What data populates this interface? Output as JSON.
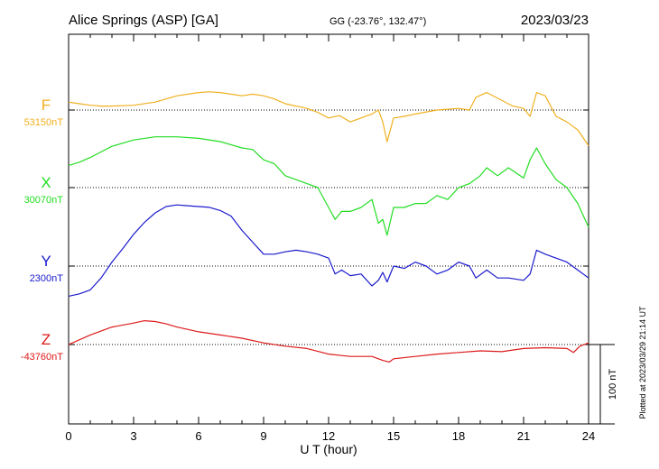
{
  "chart_data": {
    "type": "line",
    "title": "Alice Springs (ASP)  [GA]",
    "coords": "GG (-23.76°, 132.47°)",
    "date": "2023/03/23",
    "xlabel": "U T (hour)",
    "xlim": [
      0,
      24
    ],
    "xticks": [
      "0",
      "3",
      "6",
      "9",
      "12",
      "15",
      "18",
      "21",
      "24"
    ],
    "scale_bar": "100 nT",
    "plotted_note": "Plotted at 2023/03/29 21:14 UT",
    "series": [
      {
        "name": "F",
        "baseline": "53150nT",
        "color": "#f0b020",
        "x": [
          0,
          0.5,
          1,
          1.5,
          2,
          3,
          4,
          5,
          6,
          6.5,
          7,
          7.5,
          8,
          8.5,
          9,
          9.5,
          10,
          11,
          11.5,
          12,
          12.5,
          13,
          13.5,
          14,
          14.3,
          14.5,
          14.7,
          15,
          15.5,
          16,
          17,
          18,
          18.5,
          18.8,
          19.3,
          20,
          20.5,
          21,
          21.3,
          21.6,
          22,
          22.5,
          23,
          23.5,
          24
        ],
        "values": [
          10,
          8,
          6,
          5,
          5,
          6,
          10,
          18,
          22,
          23,
          22,
          20,
          18,
          20,
          18,
          14,
          8,
          2,
          -3,
          -10,
          -7,
          -15,
          -10,
          -5,
          0,
          -15,
          -40,
          -10,
          -8,
          -5,
          0,
          2,
          0,
          16,
          22,
          12,
          5,
          2,
          -8,
          22,
          18,
          -8,
          -15,
          -25,
          -45
        ]
      },
      {
        "name": "X",
        "baseline": "30070nT",
        "color": "#22dd22",
        "x": [
          0,
          0.5,
          1,
          1.5,
          2,
          3,
          4,
          5,
          6,
          7,
          8,
          8.5,
          9,
          9.5,
          10,
          10.5,
          11,
          11.5,
          12,
          12.3,
          12.6,
          13,
          13.5,
          14,
          14.3,
          14.5,
          14.7,
          15,
          15.5,
          16,
          16.5,
          17,
          17.5,
          18,
          18.5,
          19,
          19.3,
          19.8,
          20.3,
          21,
          21.3,
          21.6,
          22,
          22.5,
          23,
          23.5,
          24
        ],
        "values": [
          28,
          32,
          38,
          45,
          52,
          60,
          64,
          64,
          62,
          58,
          50,
          48,
          35,
          30,
          15,
          10,
          5,
          0,
          -25,
          -40,
          -30,
          -30,
          -25,
          -15,
          -45,
          -40,
          -60,
          -25,
          -25,
          -20,
          -20,
          -10,
          -15,
          0,
          5,
          15,
          25,
          15,
          25,
          12,
          35,
          50,
          30,
          10,
          0,
          -20,
          -50
        ]
      },
      {
        "name": "Y",
        "baseline": "2300nT",
        "color": "#1a1acc",
        "x": [
          0,
          0.5,
          1,
          1.5,
          2,
          2.5,
          3,
          3.5,
          4,
          4.5,
          5,
          5.5,
          6,
          6.5,
          7,
          7.5,
          8,
          8.5,
          9,
          9.5,
          10,
          10.5,
          11,
          11.5,
          12,
          12.3,
          12.6,
          13,
          13.5,
          14,
          14.3,
          14.5,
          14.7,
          15,
          15.5,
          16,
          16.5,
          17,
          17.5,
          18,
          18.5,
          18.8,
          19.3,
          19.8,
          20.3,
          21,
          21.3,
          21.6,
          22,
          22.5,
          23,
          23.5,
          24
        ],
        "values": [
          -38,
          -35,
          -30,
          -15,
          5,
          22,
          40,
          55,
          67,
          75,
          77,
          76,
          75,
          74,
          70,
          63,
          45,
          30,
          15,
          15,
          18,
          20,
          18,
          15,
          10,
          -10,
          -5,
          -12,
          -10,
          -25,
          -18,
          -8,
          -20,
          0,
          -3,
          5,
          0,
          -10,
          -5,
          5,
          0,
          -15,
          -5,
          -15,
          -15,
          -18,
          -10,
          20,
          15,
          10,
          5,
          -5,
          -15
        ]
      },
      {
        "name": "Z",
        "baseline": "-43760nT",
        "color": "#dd1a1a",
        "x": [
          0,
          1,
          2,
          3,
          3.5,
          4,
          4.5,
          5,
          6,
          7,
          8,
          9,
          10,
          11,
          12,
          13,
          14,
          14.5,
          14.8,
          15,
          16,
          17,
          18,
          19,
          20,
          21,
          22,
          23,
          23.3,
          23.6,
          24
        ],
        "values": [
          0,
          12,
          22,
          27,
          30,
          29,
          26,
          22,
          16,
          12,
          8,
          2,
          -2,
          -5,
          -12,
          -15,
          -15,
          -20,
          -22,
          -18,
          -15,
          -12,
          -10,
          -8,
          -9,
          -5,
          -4,
          -5,
          -10,
          -2,
          2
        ]
      }
    ]
  }
}
